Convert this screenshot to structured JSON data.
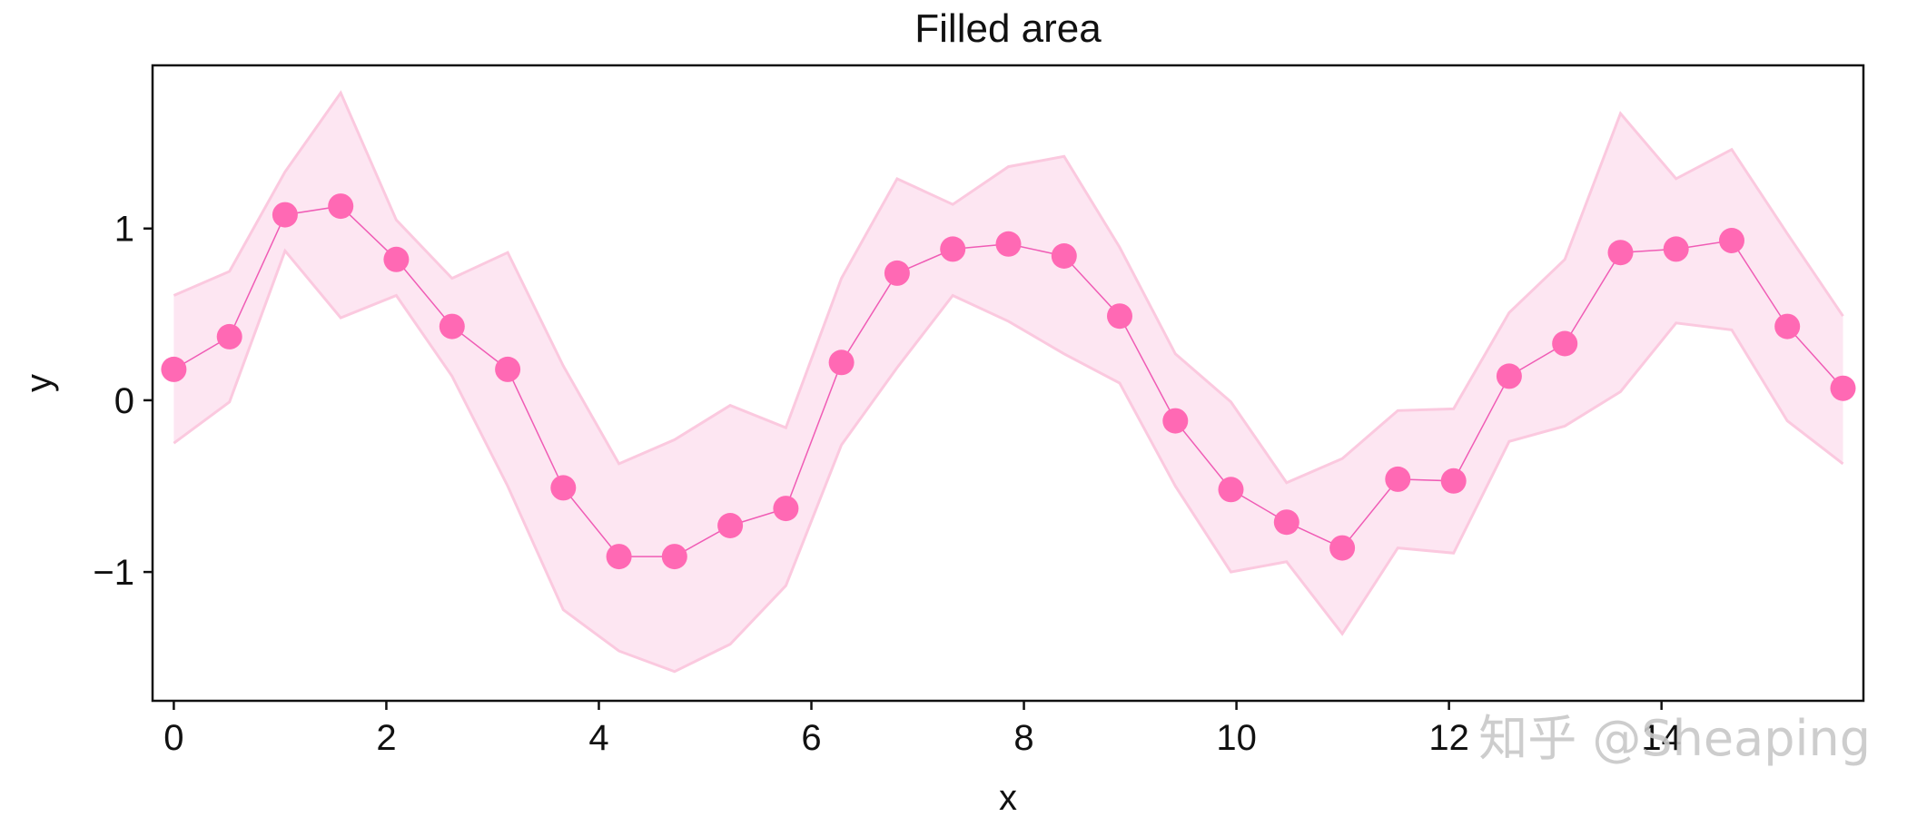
{
  "chart_data": {
    "type": "line",
    "title": "Filled area",
    "xlabel": "x",
    "ylabel": "y",
    "xlim": [
      -0.2,
      15.9
    ],
    "ylim": [
      -1.75,
      1.95
    ],
    "xticks": [
      0,
      2,
      4,
      6,
      8,
      10,
      12,
      14
    ],
    "xtick_labels": [
      "0",
      "2",
      "4",
      "6",
      "8",
      "10",
      "12",
      "14"
    ],
    "yticks": [
      -1,
      0,
      1
    ],
    "ytick_labels": [
      "−1",
      "0",
      "1"
    ],
    "grid": false,
    "colors": {
      "line": "#f05cb5",
      "marker": "#ff69b4",
      "band_fill": "#fde6f2",
      "band_edge": "#fbc9df"
    },
    "series": [
      {
        "x": [
          0.0,
          0.524,
          1.047,
          1.571,
          2.094,
          2.618,
          3.142,
          3.665,
          4.189,
          4.712,
          5.236,
          5.76,
          6.283,
          6.807,
          7.33,
          7.854,
          8.378,
          8.901,
          9.425,
          9.948,
          10.472,
          10.996,
          11.519,
          12.043,
          12.566,
          13.09,
          13.614,
          14.137,
          14.661,
          15.184,
          15.708
        ],
        "y": [
          0.18,
          0.37,
          1.08,
          1.13,
          0.82,
          0.43,
          0.18,
          -0.51,
          -0.91,
          -0.91,
          -0.73,
          -0.63,
          0.22,
          0.74,
          0.88,
          0.91,
          0.84,
          0.49,
          -0.12,
          -0.52,
          -0.71,
          -0.86,
          -0.46,
          -0.47,
          0.14,
          0.33,
          0.86,
          0.88,
          0.93,
          0.43,
          0.07
        ],
        "lower": [
          -0.25,
          -0.01,
          0.87,
          0.48,
          0.61,
          0.14,
          -0.5,
          -1.22,
          -1.46,
          -1.58,
          -1.42,
          -1.08,
          -0.26,
          0.19,
          0.61,
          0.46,
          0.27,
          0.1,
          -0.5,
          -1.0,
          -0.94,
          -1.36,
          -0.86,
          -0.89,
          -0.24,
          -0.15,
          0.05,
          0.45,
          0.41,
          -0.12,
          -0.37
        ],
        "upper": [
          0.61,
          0.75,
          1.33,
          1.79,
          1.05,
          0.71,
          0.86,
          0.2,
          -0.37,
          -0.23,
          -0.03,
          -0.16,
          0.71,
          1.29,
          1.14,
          1.36,
          1.42,
          0.89,
          0.27,
          -0.01,
          -0.48,
          -0.34,
          -0.06,
          -0.05,
          0.51,
          0.82,
          1.67,
          1.29,
          1.46,
          0.97,
          0.49
        ]
      }
    ]
  },
  "watermark": "知乎 @Sheaping"
}
